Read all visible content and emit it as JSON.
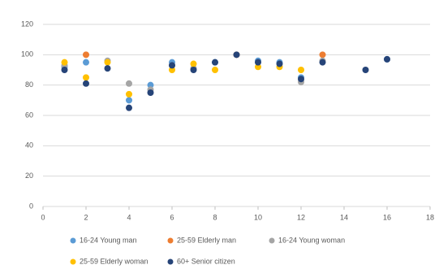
{
  "chart_data": {
    "type": "scatter",
    "xlim": [
      0,
      18
    ],
    "xticks": [
      0,
      2,
      4,
      6,
      8,
      10,
      12,
      14,
      16,
      18
    ],
    "ylim": [
      0,
      120
    ],
    "yticks": [
      0,
      20,
      40,
      60,
      80,
      100,
      120
    ],
    "grid": true,
    "legend": "bottom",
    "series": [
      {
        "name": "16-24 Young man",
        "color": "#5b9bd5",
        "x": [
          1,
          2,
          4,
          5,
          6,
          8,
          10,
          11,
          12,
          16
        ],
        "values": [
          92,
          95,
          70,
          80,
          95,
          95,
          96,
          95,
          85,
          97
        ]
      },
      {
        "name": "25-59 Elderly man",
        "color": "#ed7d31",
        "x": [
          2,
          9,
          13
        ],
        "values": [
          100,
          100,
          100
        ]
      },
      {
        "name": "16-24 Young woman",
        "color": "#a5a5a5",
        "x": [
          1,
          3,
          4,
          5,
          6,
          7,
          12,
          13
        ],
        "values": [
          93,
          96,
          81,
          77,
          93,
          91,
          82,
          96
        ]
      },
      {
        "name": "25-59 Elderly woman",
        "color": "#ffc000",
        "x": [
          1,
          2,
          3,
          4,
          6,
          7,
          8,
          10,
          11,
          12
        ],
        "values": [
          95,
          85,
          95,
          74,
          90,
          94,
          90,
          92,
          92,
          90
        ]
      },
      {
        "name": "60+ Senior citizen",
        "color": "#264478",
        "x": [
          1,
          2,
          3,
          4,
          5,
          6,
          7,
          8,
          9,
          10,
          11,
          12,
          13,
          15,
          16
        ],
        "values": [
          90,
          81,
          91,
          65,
          75,
          93,
          90,
          95,
          100,
          95,
          94,
          84,
          95,
          90,
          97
        ]
      }
    ]
  }
}
